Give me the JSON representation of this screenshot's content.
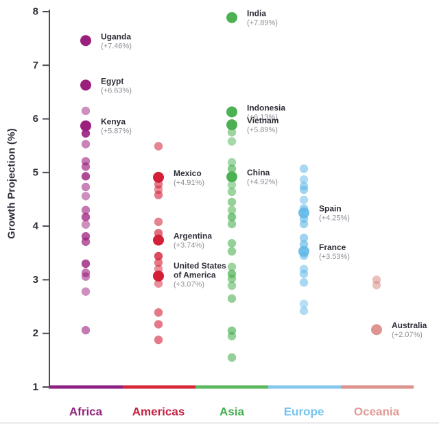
{
  "chart_data": {
    "type": "scatter",
    "title": "",
    "ylabel": "Growth Projection (%)",
    "xlabel": "",
    "ylim": [
      1,
      8
    ],
    "yticks": [
      8,
      7,
      6,
      5,
      4,
      3,
      2,
      1
    ],
    "grid": false,
    "legend": "none",
    "axis_color": "#4b4b55",
    "tick_text_color": "#2e2e38",
    "annotation_name_color": "#2e2e38",
    "annotation_pct_color": "#8e8e98",
    "bottom_rule_color": "#dadada",
    "categories": [
      {
        "name": "Africa",
        "dot_color": "#9b1f7d",
        "axis_segment_color": "#8e2184",
        "label_color": "#94237f",
        "points": [
          {
            "v": 7.46,
            "a": 1,
            "big": true
          },
          {
            "v": 6.63,
            "a": 1,
            "big": true
          },
          {
            "v": 6.15,
            "a": 0.5
          },
          {
            "v": 5.87,
            "a": 1,
            "big": true
          },
          {
            "v": 5.73,
            "a": 0.9
          },
          {
            "v": 5.53,
            "a": 0.55
          },
          {
            "v": 5.21,
            "a": 0.6
          },
          {
            "v": 5.11,
            "a": 0.65
          },
          {
            "v": 4.93,
            "a": 0.8
          },
          {
            "v": 4.73,
            "a": 0.55
          },
          {
            "v": 4.56,
            "a": 0.5
          },
          {
            "v": 4.3,
            "a": 0.6
          },
          {
            "v": 4.17,
            "a": 0.75
          },
          {
            "v": 4.03,
            "a": 0.5
          },
          {
            "v": 3.81,
            "a": 0.75
          },
          {
            "v": 3.71,
            "a": 0.7
          },
          {
            "v": 3.3,
            "a": 0.8
          },
          {
            "v": 3.13,
            "a": 0.6
          },
          {
            "v": 3.06,
            "a": 0.55
          },
          {
            "v": 2.78,
            "a": 0.5
          },
          {
            "v": 2.06,
            "a": 0.6
          }
        ],
        "annotations": [
          {
            "country": "Uganda",
            "pct": "(+7.46%)",
            "v": 7.46
          },
          {
            "country": "Egypt",
            "pct": "(+6.63%)",
            "v": 6.63
          },
          {
            "country": "Kenya",
            "pct": "(+5.87%)",
            "v": 5.87
          }
        ]
      },
      {
        "name": "Americas",
        "dot_color": "#d31f37",
        "axis_segment_color": "#d62839",
        "label_color": "#c52040",
        "points": [
          {
            "v": 5.49,
            "a": 0.55
          },
          {
            "v": 4.91,
            "a": 1,
            "big": true
          },
          {
            "v": 4.78,
            "a": 0.6
          },
          {
            "v": 4.68,
            "a": 0.5
          },
          {
            "v": 4.58,
            "a": 0.6
          },
          {
            "v": 4.08,
            "a": 0.55
          },
          {
            "v": 3.87,
            "a": 0.65
          },
          {
            "v": 3.74,
            "a": 1,
            "big": true
          },
          {
            "v": 3.44,
            "a": 0.8
          },
          {
            "v": 3.32,
            "a": 0.6
          },
          {
            "v": 3.2,
            "a": 0.5
          },
          {
            "v": 3.07,
            "a": 1,
            "big": true
          },
          {
            "v": 2.93,
            "a": 0.5
          },
          {
            "v": 2.39,
            "a": 0.6
          },
          {
            "v": 2.17,
            "a": 0.6
          },
          {
            "v": 1.88,
            "a": 0.6
          }
        ],
        "annotations": [
          {
            "country": "Mexico",
            "pct": "(+4.91%)",
            "v": 4.91
          },
          {
            "country": "Argentina",
            "pct": "(+3.74%)",
            "v": 3.74
          },
          {
            "country": "United States\nof America",
            "pct": "(+3.07%)",
            "v": 3.07,
            "dy": -21
          }
        ]
      },
      {
        "name": "Asia",
        "dot_color": "#4cb152",
        "axis_segment_color": "#5cb85e",
        "label_color": "#44ae4d",
        "points": [
          {
            "v": 7.89,
            "a": 1,
            "big": true
          },
          {
            "v": 6.13,
            "a": 1,
            "big": true
          },
          {
            "v": 5.89,
            "a": 1,
            "big": true
          },
          {
            "v": 5.75,
            "a": 0.55
          },
          {
            "v": 5.58,
            "a": 0.5
          },
          {
            "v": 5.19,
            "a": 0.5
          },
          {
            "v": 5.07,
            "a": 0.65
          },
          {
            "v": 4.92,
            "a": 1,
            "big": true
          },
          {
            "v": 4.77,
            "a": 0.5
          },
          {
            "v": 4.64,
            "a": 0.55
          },
          {
            "v": 4.45,
            "a": 0.6
          },
          {
            "v": 4.3,
            "a": 0.55
          },
          {
            "v": 4.17,
            "a": 0.7
          },
          {
            "v": 4.04,
            "a": 0.6
          },
          {
            "v": 3.68,
            "a": 0.6
          },
          {
            "v": 3.53,
            "a": 0.6
          },
          {
            "v": 3.24,
            "a": 0.55
          },
          {
            "v": 3.11,
            "a": 0.7
          },
          {
            "v": 3.02,
            "a": 0.6
          },
          {
            "v": 2.89,
            "a": 0.55
          },
          {
            "v": 2.65,
            "a": 0.6
          },
          {
            "v": 2.05,
            "a": 0.65
          },
          {
            "v": 1.95,
            "a": 0.6
          },
          {
            "v": 1.55,
            "a": 0.6
          }
        ],
        "annotations": [
          {
            "country": "India",
            "pct": "(+7.89%)",
            "v": 7.89
          },
          {
            "country": "Indonesia",
            "pct": "(+6.13%)",
            "v": 6.13
          },
          {
            "country": "Vietnam",
            "pct": "(+5.89%)",
            "v": 5.89
          },
          {
            "country": "China",
            "pct": "(+4.92%)",
            "v": 4.92
          }
        ]
      },
      {
        "name": "Europe",
        "dot_color": "#5fb8e8",
        "axis_segment_color": "#86c7ec",
        "label_color": "#74c2ee",
        "points": [
          {
            "v": 5.07,
            "a": 0.55
          },
          {
            "v": 4.87,
            "a": 0.5
          },
          {
            "v": 4.75,
            "a": 0.55
          },
          {
            "v": 4.68,
            "a": 0.6
          },
          {
            "v": 4.49,
            "a": 0.5
          },
          {
            "v": 4.33,
            "a": 0.6
          },
          {
            "v": 4.25,
            "a": 0.9,
            "big": true
          },
          {
            "v": 4.14,
            "a": 0.6
          },
          {
            "v": 4.04,
            "a": 0.6
          },
          {
            "v": 3.78,
            "a": 0.6
          },
          {
            "v": 3.66,
            "a": 0.65
          },
          {
            "v": 3.53,
            "a": 0.9,
            "big": true
          },
          {
            "v": 3.45,
            "a": 0.6
          },
          {
            "v": 3.2,
            "a": 0.5
          },
          {
            "v": 3.11,
            "a": 0.55
          },
          {
            "v": 2.95,
            "a": 0.55
          },
          {
            "v": 2.55,
            "a": 0.45
          },
          {
            "v": 2.42,
            "a": 0.5
          }
        ],
        "annotations": [
          {
            "country": "Spain",
            "pct": "(+4.25%)",
            "v": 4.25
          },
          {
            "country": "France",
            "pct": "(+3.53%)",
            "v": 3.53
          }
        ]
      },
      {
        "name": "Oceania",
        "dot_color": "#d8837c",
        "axis_segment_color": "#dc938d",
        "label_color": "#e09a94",
        "points": [
          {
            "v": 3.0,
            "a": 0.5
          },
          {
            "v": 2.9,
            "a": 0.5
          },
          {
            "v": 2.07,
            "a": 0.85,
            "big": true
          }
        ],
        "annotations": [
          {
            "country": "Australia",
            "pct": "(+2.07%)",
            "v": 2.07
          }
        ]
      }
    ]
  }
}
